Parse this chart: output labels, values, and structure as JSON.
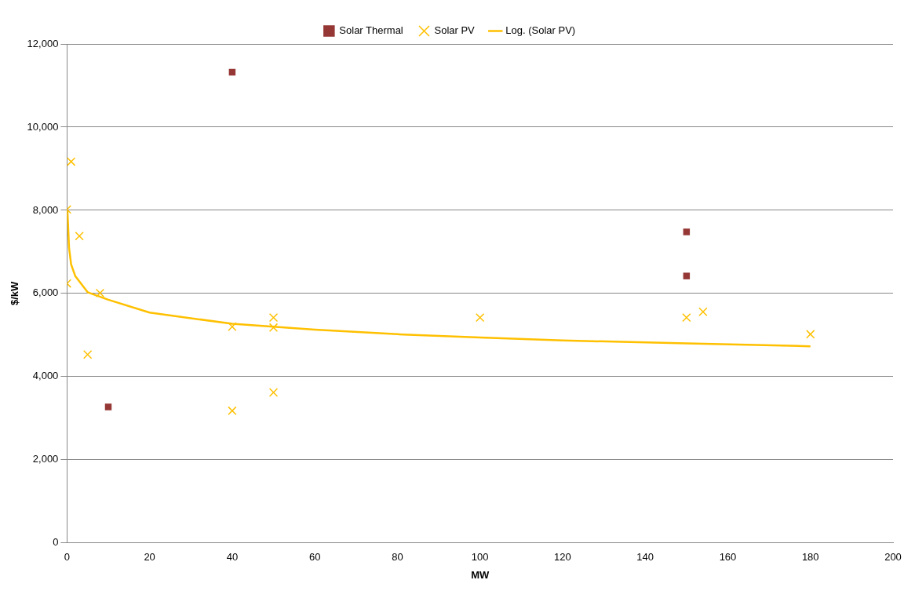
{
  "chart_data": {
    "type": "scatter",
    "xlabel": "MW",
    "ylabel": "$/kW",
    "legend": "top",
    "grid": "y",
    "xlim": [
      0,
      200
    ],
    "xticks": [
      0,
      20,
      40,
      60,
      80,
      100,
      120,
      140,
      160,
      180,
      200
    ],
    "ylim": [
      0,
      12000
    ],
    "yticks": [
      0,
      {
        "value": 2000,
        "label": "2,000"
      },
      {
        "value": 4000,
        "label": "4,000"
      },
      {
        "value": 6000,
        "label": "6,000"
      },
      {
        "value": 8000,
        "label": "8,000"
      },
      {
        "value": 10000,
        "label": "10,000"
      },
      {
        "value": 12000,
        "label": "12,000"
      }
    ],
    "series": [
      {
        "name": "Solar Thermal",
        "marker": "square",
        "color": "#953735",
        "x": [
          40,
          10,
          150,
          150
        ],
        "values": [
          11320,
          3270,
          7480,
          6420
        ]
      },
      {
        "name": "Solar PV",
        "marker": "cross",
        "color": "#ffc000",
        "x": [
          0,
          1,
          0,
          3,
          5,
          8,
          40,
          40,
          50,
          50,
          50,
          100,
          150,
          154,
          180
        ],
        "values": [
          8020,
          9170,
          6240,
          7380,
          4530,
          6010,
          5200,
          3180,
          5420,
          5180,
          3620,
          5420,
          5420,
          5560,
          5020
        ]
      },
      {
        "name": "Log. (Solar PV)",
        "type": "line",
        "marker": "none",
        "line_style": "solid",
        "color": "#ffc000",
        "x": [
          0.1,
          0.5,
          1,
          2,
          5,
          10,
          20,
          40,
          60,
          80,
          100,
          120,
          150,
          180
        ],
        "values": [
          8000,
          7100,
          6700,
          6420,
          6030,
          5850,
          5540,
          5270,
          5130,
          5020,
          4940,
          4870,
          4800,
          4730
        ]
      }
    ]
  }
}
